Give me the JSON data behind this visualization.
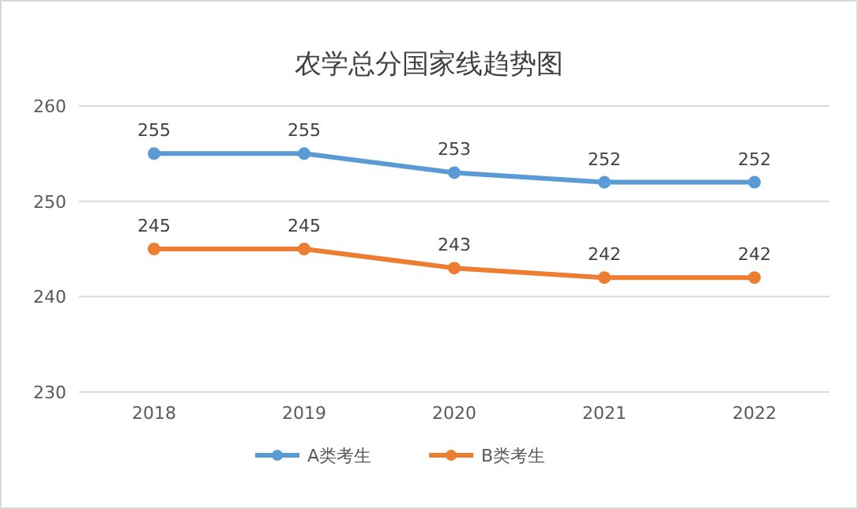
{
  "chart_data": {
    "type": "line",
    "title": "农学总分国家线趋势图",
    "categories": [
      "2018",
      "2019",
      "2020",
      "2021",
      "2022"
    ],
    "series": [
      {
        "name": "A类考生",
        "color": "#5b9bd5",
        "values": [
          255,
          255,
          253,
          252,
          252
        ]
      },
      {
        "name": "B类考生",
        "color": "#ed7d31",
        "values": [
          245,
          245,
          243,
          242,
          242
        ]
      }
    ],
    "ylim": [
      230,
      260
    ],
    "yticks": [
      230,
      240,
      250,
      260
    ],
    "grid": "y",
    "legend": "bottom",
    "marker": "circle",
    "line_style": "solid",
    "data_labels": true
  }
}
